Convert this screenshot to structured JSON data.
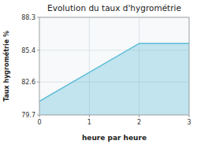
{
  "chart_data": {
    "type": "area",
    "title": "Evolution du taux d'hygrométrie",
    "xlabel": "heure par heure",
    "ylabel": "Taux hygrométrie %",
    "x": [
      0,
      2,
      3
    ],
    "values": [
      80.9,
      86.0,
      86.0
    ],
    "xlim": [
      0,
      3
    ],
    "ylim": [
      79.7,
      88.3
    ],
    "xticks": [
      0,
      1,
      2,
      3
    ],
    "yticks": [
      79.7,
      82.6,
      85.4,
      88.3
    ],
    "grid": true,
    "color": "#5bbcd6"
  }
}
